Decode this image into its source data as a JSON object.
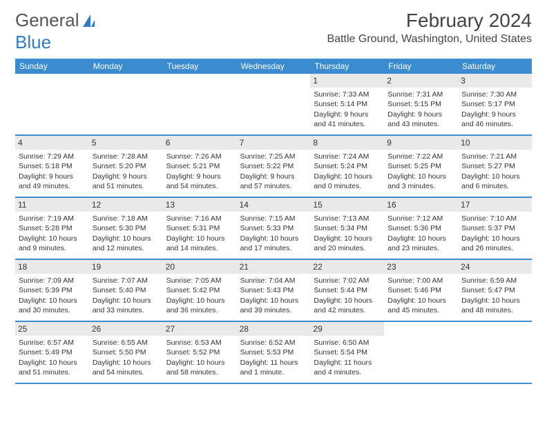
{
  "logo": {
    "text_gray": "General",
    "text_blue": "Blue"
  },
  "title": "February 2024",
  "location": "Battle Ground, Washington, United States",
  "colors": {
    "header_bg": "#3b8bcf",
    "header_text": "#ffffff",
    "daynum_bg": "#e9e9e9",
    "row_border": "#3b8bcf",
    "page_bg": "#ffffff",
    "logo_gray": "#555555",
    "logo_blue": "#2f7cc0"
  },
  "day_names": [
    "Sunday",
    "Monday",
    "Tuesday",
    "Wednesday",
    "Thursday",
    "Friday",
    "Saturday"
  ],
  "weeks": [
    [
      {
        "blank": true
      },
      {
        "blank": true
      },
      {
        "blank": true
      },
      {
        "blank": true
      },
      {
        "n": "1",
        "sunrise": "Sunrise: 7:33 AM",
        "sunset": "Sunset: 5:14 PM",
        "d1": "Daylight: 9 hours",
        "d2": "and 41 minutes."
      },
      {
        "n": "2",
        "sunrise": "Sunrise: 7:31 AM",
        "sunset": "Sunset: 5:15 PM",
        "d1": "Daylight: 9 hours",
        "d2": "and 43 minutes."
      },
      {
        "n": "3",
        "sunrise": "Sunrise: 7:30 AM",
        "sunset": "Sunset: 5:17 PM",
        "d1": "Daylight: 9 hours",
        "d2": "and 46 minutes."
      }
    ],
    [
      {
        "n": "4",
        "sunrise": "Sunrise: 7:29 AM",
        "sunset": "Sunset: 5:18 PM",
        "d1": "Daylight: 9 hours",
        "d2": "and 49 minutes."
      },
      {
        "n": "5",
        "sunrise": "Sunrise: 7:28 AM",
        "sunset": "Sunset: 5:20 PM",
        "d1": "Daylight: 9 hours",
        "d2": "and 51 minutes."
      },
      {
        "n": "6",
        "sunrise": "Sunrise: 7:26 AM",
        "sunset": "Sunset: 5:21 PM",
        "d1": "Daylight: 9 hours",
        "d2": "and 54 minutes."
      },
      {
        "n": "7",
        "sunrise": "Sunrise: 7:25 AM",
        "sunset": "Sunset: 5:22 PM",
        "d1": "Daylight: 9 hours",
        "d2": "and 57 minutes."
      },
      {
        "n": "8",
        "sunrise": "Sunrise: 7:24 AM",
        "sunset": "Sunset: 5:24 PM",
        "d1": "Daylight: 10 hours",
        "d2": "and 0 minutes."
      },
      {
        "n": "9",
        "sunrise": "Sunrise: 7:22 AM",
        "sunset": "Sunset: 5:25 PM",
        "d1": "Daylight: 10 hours",
        "d2": "and 3 minutes."
      },
      {
        "n": "10",
        "sunrise": "Sunrise: 7:21 AM",
        "sunset": "Sunset: 5:27 PM",
        "d1": "Daylight: 10 hours",
        "d2": "and 6 minutes."
      }
    ],
    [
      {
        "n": "11",
        "sunrise": "Sunrise: 7:19 AM",
        "sunset": "Sunset: 5:28 PM",
        "d1": "Daylight: 10 hours",
        "d2": "and 9 minutes."
      },
      {
        "n": "12",
        "sunrise": "Sunrise: 7:18 AM",
        "sunset": "Sunset: 5:30 PM",
        "d1": "Daylight: 10 hours",
        "d2": "and 12 minutes."
      },
      {
        "n": "13",
        "sunrise": "Sunrise: 7:16 AM",
        "sunset": "Sunset: 5:31 PM",
        "d1": "Daylight: 10 hours",
        "d2": "and 14 minutes."
      },
      {
        "n": "14",
        "sunrise": "Sunrise: 7:15 AM",
        "sunset": "Sunset: 5:33 PM",
        "d1": "Daylight: 10 hours",
        "d2": "and 17 minutes."
      },
      {
        "n": "15",
        "sunrise": "Sunrise: 7:13 AM",
        "sunset": "Sunset: 5:34 PM",
        "d1": "Daylight: 10 hours",
        "d2": "and 20 minutes."
      },
      {
        "n": "16",
        "sunrise": "Sunrise: 7:12 AM",
        "sunset": "Sunset: 5:36 PM",
        "d1": "Daylight: 10 hours",
        "d2": "and 23 minutes."
      },
      {
        "n": "17",
        "sunrise": "Sunrise: 7:10 AM",
        "sunset": "Sunset: 5:37 PM",
        "d1": "Daylight: 10 hours",
        "d2": "and 26 minutes."
      }
    ],
    [
      {
        "n": "18",
        "sunrise": "Sunrise: 7:09 AM",
        "sunset": "Sunset: 5:39 PM",
        "d1": "Daylight: 10 hours",
        "d2": "and 30 minutes."
      },
      {
        "n": "19",
        "sunrise": "Sunrise: 7:07 AM",
        "sunset": "Sunset: 5:40 PM",
        "d1": "Daylight: 10 hours",
        "d2": "and 33 minutes."
      },
      {
        "n": "20",
        "sunrise": "Sunrise: 7:05 AM",
        "sunset": "Sunset: 5:42 PM",
        "d1": "Daylight: 10 hours",
        "d2": "and 36 minutes."
      },
      {
        "n": "21",
        "sunrise": "Sunrise: 7:04 AM",
        "sunset": "Sunset: 5:43 PM",
        "d1": "Daylight: 10 hours",
        "d2": "and 39 minutes."
      },
      {
        "n": "22",
        "sunrise": "Sunrise: 7:02 AM",
        "sunset": "Sunset: 5:44 PM",
        "d1": "Daylight: 10 hours",
        "d2": "and 42 minutes."
      },
      {
        "n": "23",
        "sunrise": "Sunrise: 7:00 AM",
        "sunset": "Sunset: 5:46 PM",
        "d1": "Daylight: 10 hours",
        "d2": "and 45 minutes."
      },
      {
        "n": "24",
        "sunrise": "Sunrise: 6:59 AM",
        "sunset": "Sunset: 5:47 PM",
        "d1": "Daylight: 10 hours",
        "d2": "and 48 minutes."
      }
    ],
    [
      {
        "n": "25",
        "sunrise": "Sunrise: 6:57 AM",
        "sunset": "Sunset: 5:49 PM",
        "d1": "Daylight: 10 hours",
        "d2": "and 51 minutes."
      },
      {
        "n": "26",
        "sunrise": "Sunrise: 6:55 AM",
        "sunset": "Sunset: 5:50 PM",
        "d1": "Daylight: 10 hours",
        "d2": "and 54 minutes."
      },
      {
        "n": "27",
        "sunrise": "Sunrise: 6:53 AM",
        "sunset": "Sunset: 5:52 PM",
        "d1": "Daylight: 10 hours",
        "d2": "and 58 minutes."
      },
      {
        "n": "28",
        "sunrise": "Sunrise: 6:52 AM",
        "sunset": "Sunset: 5:53 PM",
        "d1": "Daylight: 11 hours",
        "d2": "and 1 minute."
      },
      {
        "n": "29",
        "sunrise": "Sunrise: 6:50 AM",
        "sunset": "Sunset: 5:54 PM",
        "d1": "Daylight: 11 hours",
        "d2": "and 4 minutes."
      },
      {
        "blank": true
      },
      {
        "blank": true
      }
    ]
  ]
}
